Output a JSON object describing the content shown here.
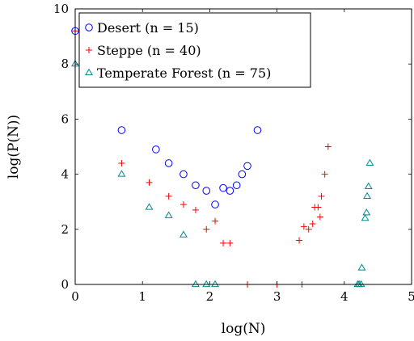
{
  "chart_data": {
    "type": "scatter",
    "xlabel": "log(N)",
    "ylabel": "log(P(N))",
    "xlim": [
      0,
      5
    ],
    "ylim": [
      0,
      10
    ],
    "x_ticks": [
      "0",
      "1",
      "2",
      "3",
      "4",
      "5"
    ],
    "y_ticks": [
      "0",
      "2",
      "4",
      "6",
      "8",
      "10"
    ],
    "grid": false,
    "legend_position": "top-left",
    "series": [
      {
        "name": "Desert (n = 15)",
        "marker": "circle",
        "color": "#0000ff",
        "points": [
          [
            0.0,
            9.2
          ],
          [
            0.69,
            5.6
          ],
          [
            1.2,
            4.9
          ],
          [
            1.39,
            4.4
          ],
          [
            1.61,
            4.0
          ],
          [
            1.79,
            3.6
          ],
          [
            1.95,
            3.4
          ],
          [
            2.08,
            2.9
          ],
          [
            2.2,
            3.5
          ],
          [
            2.3,
            3.4
          ],
          [
            2.4,
            3.6
          ],
          [
            2.48,
            4.0
          ],
          [
            2.56,
            4.3
          ],
          [
            2.71,
            5.6
          ]
        ]
      },
      {
        "name": "Steppe (n = 40)",
        "marker": "plus",
        "color": "#ff0000",
        "points": [
          [
            0.0,
            9.2
          ],
          [
            0.69,
            4.4
          ],
          [
            1.1,
            3.7
          ],
          [
            1.39,
            3.2
          ],
          [
            1.61,
            2.9
          ],
          [
            1.79,
            2.7
          ],
          [
            1.95,
            2.0
          ],
          [
            2.08,
            2.3
          ],
          [
            2.2,
            1.5
          ],
          [
            2.3,
            1.5
          ],
          [
            2.56,
            0.0
          ],
          [
            3.0,
            0.0
          ],
          [
            3.37,
            0.0
          ],
          [
            3.33,
            1.6
          ],
          [
            3.4,
            2.1
          ],
          [
            3.47,
            2.0
          ],
          [
            3.53,
            2.2
          ],
          [
            3.56,
            2.8
          ],
          [
            3.61,
            2.8
          ],
          [
            3.64,
            2.45
          ],
          [
            3.66,
            3.2
          ],
          [
            3.71,
            4.0
          ],
          [
            3.76,
            5.0
          ]
        ]
      },
      {
        "name": "Temperate Forest (n = 75)",
        "marker": "triangle",
        "color": "#008b8b",
        "points": [
          [
            0.0,
            8.0
          ],
          [
            0.69,
            4.0
          ],
          [
            1.1,
            2.8
          ],
          [
            1.39,
            2.5
          ],
          [
            1.61,
            1.8
          ],
          [
            1.79,
            0.0
          ],
          [
            1.95,
            0.0
          ],
          [
            2.08,
            0.0
          ],
          [
            4.2,
            0.0
          ],
          [
            4.22,
            0.0
          ],
          [
            4.25,
            0.0
          ],
          [
            4.26,
            0.6
          ],
          [
            4.31,
            2.4
          ],
          [
            4.33,
            2.6
          ],
          [
            4.34,
            3.2
          ],
          [
            4.36,
            3.55
          ],
          [
            4.38,
            4.4
          ]
        ]
      }
    ]
  },
  "colors": {
    "desert": "#0000ff",
    "steppe": "#ff0000",
    "forest": "#008b8b",
    "axis": "#000000"
  }
}
